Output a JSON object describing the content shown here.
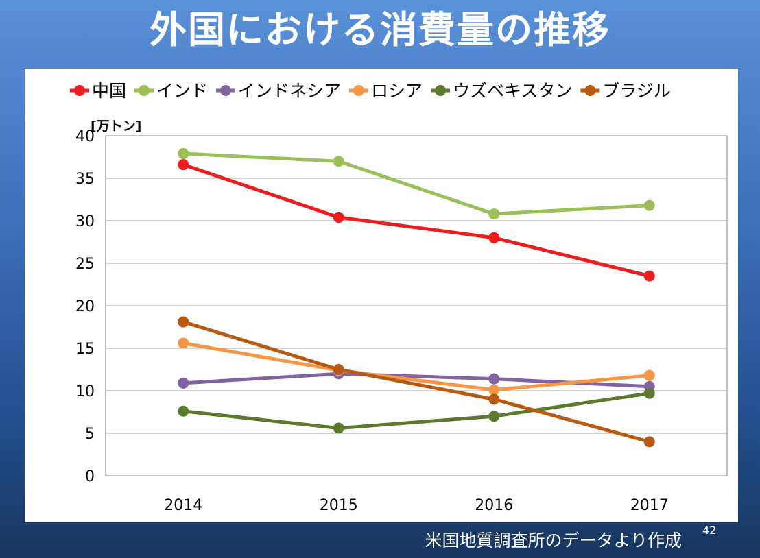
{
  "slide": {
    "title": "外国における消費量の推移",
    "source_note": "米国地質調査所のデータより作成",
    "page_number": "42"
  },
  "chart_data": {
    "type": "line",
    "title": "",
    "xlabel": "",
    "ylabel": "[万トン]",
    "categories": [
      "2014",
      "2015",
      "2016",
      "2017"
    ],
    "ylim": [
      0,
      40
    ],
    "yticks": [
      0,
      5,
      10,
      15,
      20,
      25,
      30,
      35,
      40
    ],
    "grid": true,
    "legend_position": "top",
    "series": [
      {
        "name": "中国",
        "color": "#ee1c1c",
        "values": [
          36.6,
          30.4,
          28.0,
          23.5
        ]
      },
      {
        "name": "インド",
        "color": "#9bc05a",
        "values": [
          37.9,
          37.0,
          30.8,
          31.8
        ]
      },
      {
        "name": "インドネシア",
        "color": "#8064a2",
        "values": [
          10.9,
          12.0,
          11.4,
          10.5
        ]
      },
      {
        "name": "ロシア",
        "color": "#f79646",
        "values": [
          15.6,
          12.4,
          10.1,
          11.8
        ]
      },
      {
        "name": "ウズベキスタン",
        "color": "#5c7a2e",
        "values": [
          7.6,
          5.6,
          7.0,
          9.7
        ]
      },
      {
        "name": "ブラジル",
        "color": "#b85a12",
        "values": [
          18.1,
          12.5,
          9.0,
          4.0
        ]
      }
    ]
  }
}
